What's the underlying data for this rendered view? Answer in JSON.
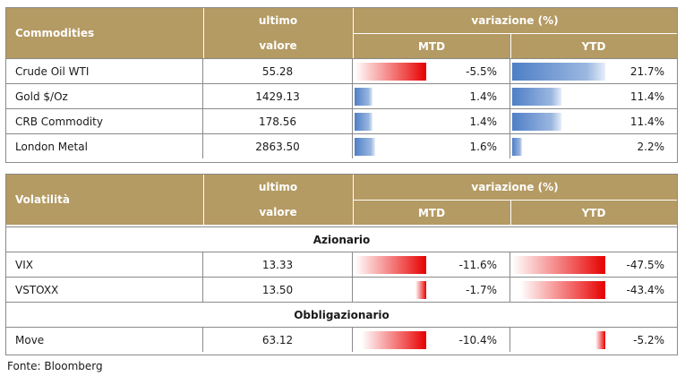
{
  "commodities": {
    "header": {
      "title": "Commodities",
      "last_line1": "ultimo",
      "last_line2": "valore",
      "change": "variazione (%)",
      "mtd": "MTD",
      "ytd": "YTD"
    },
    "rows": [
      {
        "name": "Crude Oil WTI",
        "value": "55.28",
        "mtd": "-5.5%",
        "ytd": "21.7%",
        "mtd_num": -5.5,
        "ytd_num": 21.7
      },
      {
        "name": "Gold $/Oz",
        "value": "1429.13",
        "mtd": "1.4%",
        "ytd": "11.4%",
        "mtd_num": 1.4,
        "ytd_num": 11.4
      },
      {
        "name": "CRB Commodity",
        "value": "178.56",
        "mtd": "1.4%",
        "ytd": "11.4%",
        "mtd_num": 1.4,
        "ytd_num": 11.4
      },
      {
        "name": "London Metal",
        "value": "2863.50",
        "mtd": "1.6%",
        "ytd": "2.2%",
        "mtd_num": 1.6,
        "ytd_num": 2.2
      }
    ]
  },
  "volatility": {
    "header": {
      "title": "Volatilità",
      "last_line1": "ultimo",
      "last_line2": "valore",
      "change": "variazione (%)",
      "mtd": "MTD",
      "ytd": "YTD"
    },
    "section_equity": "Azionario",
    "section_bond": "Obbligazionario",
    "equity_rows": [
      {
        "name": "VIX",
        "value": "13.33",
        "mtd": "-11.6%",
        "ytd": "-47.5%",
        "mtd_num": -11.6,
        "ytd_num": -47.5
      },
      {
        "name": "VSTOXX",
        "value": "13.50",
        "mtd": "-1.7%",
        "ytd": "-43.4%",
        "mtd_num": -1.7,
        "ytd_num": -43.4
      }
    ],
    "bond_rows": [
      {
        "name": "Move",
        "value": "63.12",
        "mtd": "-10.4%",
        "ytd": "-5.2%",
        "mtd_num": -10.4,
        "ytd_num": -5.2
      }
    ]
  },
  "source": "Fonte: Bloomberg",
  "colors": {
    "header_bg": "#b49a63",
    "negative_bar": "#e60000",
    "positive_bar": "#4e7fc6"
  }
}
